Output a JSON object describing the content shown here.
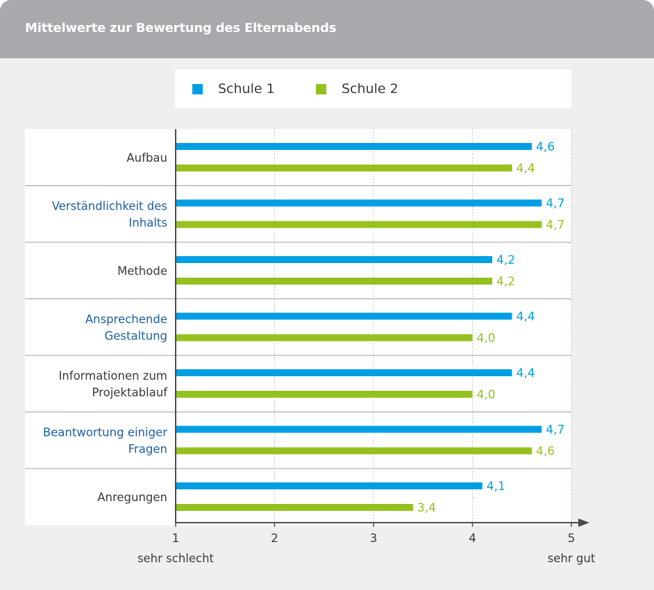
{
  "title": "Mittelwerte zur Bewertung des Elternabends",
  "colors": {
    "series1": "#009fe3",
    "series2": "#95c11f",
    "header_bg": "#a7a9ac",
    "card_bg": "#eef0f0",
    "category_emphasis": "#1d5fa6",
    "category_normal": "#3a3a3a"
  },
  "chart_data": {
    "type": "bar",
    "orientation": "horizontal",
    "categories": [
      [
        "Aufbau"
      ],
      [
        "Verständlichkeit des",
        "Inhalts"
      ],
      [
        "Methode"
      ],
      [
        "Ansprechende",
        "Gestaltung"
      ],
      [
        "Informationen zum",
        "Projektablauf"
      ],
      [
        "Beantwortung einiger",
        "Fragen"
      ],
      [
        "Anregungen"
      ]
    ],
    "category_emphasis": [
      false,
      true,
      false,
      true,
      false,
      true,
      false
    ],
    "series": [
      {
        "name": "Schule 1",
        "values": [
          4.6,
          4.7,
          4.2,
          4.4,
          4.4,
          4.7,
          4.1
        ],
        "labels": [
          "4,6",
          "4,7",
          "4,2",
          "4,4",
          "4,4",
          "4,7",
          "4,1"
        ]
      },
      {
        "name": "Schule 2",
        "values": [
          4.4,
          4.7,
          4.2,
          4.0,
          4.0,
          4.6,
          3.4
        ],
        "labels": [
          "4,4",
          "4,7",
          "4,2",
          "4,0",
          "4,0",
          "4,6",
          "3,4"
        ]
      }
    ],
    "xlim": [
      1,
      5
    ],
    "xticks": [
      "1",
      "2",
      "3",
      "4",
      "5"
    ],
    "x_min_label": "sehr schlecht",
    "x_max_label": "sehr gut",
    "grid": "vertical dotted",
    "legend_position": "top"
  }
}
